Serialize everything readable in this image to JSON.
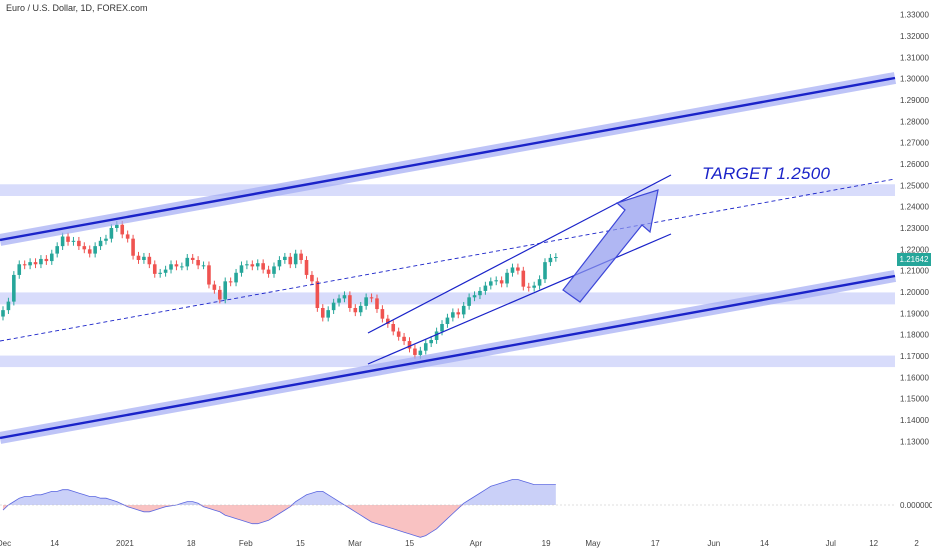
{
  "window": {
    "title": "Euro / U.S. Dollar, 1D, FOREX.com"
  },
  "annotation": {
    "target_label": "TARGET 1.2500"
  },
  "last_price_label": "1.21642",
  "colors": {
    "up": "#26a69a",
    "down": "#ef5350",
    "channel": "#1a23c9",
    "zone": "#d8dcfb",
    "macd_pos": "#a7b1f3",
    "macd_neg": "#f7a8a8"
  },
  "chart_data": {
    "type": "candlestick",
    "title": "Euro / U.S. Dollar, 1D, FOREX.com",
    "price_axis": {
      "range": [
        1.125,
        1.335
      ],
      "ticks": [
        "1.33000",
        "1.32000",
        "1.31000",
        "1.30000",
        "1.29000",
        "1.28000",
        "1.27000",
        "1.26000",
        "1.25000",
        "1.24000",
        "1.23000",
        "1.22000",
        "1.21000",
        "1.20000",
        "1.19000",
        "1.18000",
        "1.17000",
        "1.16000",
        "1.15000",
        "1.14000",
        "1.13000"
      ]
    },
    "date_axis": {
      "ticks": [
        {
          "label": "Dec",
          "day": 0
        },
        {
          "label": "14",
          "day": 13
        },
        {
          "label": "2021",
          "day": 31
        },
        {
          "label": "18",
          "day": 48
        },
        {
          "label": "Feb",
          "day": 62
        },
        {
          "label": "15",
          "day": 76
        },
        {
          "label": "Mar",
          "day": 90
        },
        {
          "label": "15",
          "day": 104
        },
        {
          "label": "Apr",
          "day": 121
        },
        {
          "label": "19",
          "day": 139
        },
        {
          "label": "May",
          "day": 151
        },
        {
          "label": "17",
          "day": 167
        },
        {
          "label": "Jun",
          "day": 182
        },
        {
          "label": "14",
          "day": 195
        },
        {
          "label": "Jul",
          "day": 212
        },
        {
          "label": "12",
          "day": 223
        },
        {
          "label": "2",
          "day": 234
        }
      ]
    },
    "macd_axis": {
      "ticks": [
        "0.000000"
      ]
    },
    "closes": [
      1.1915,
      1.1955,
      1.208,
      1.213,
      1.2125,
      1.214,
      1.213,
      1.2155,
      1.2145,
      1.218,
      1.2215,
      1.226,
      1.2235,
      1.224,
      1.2215,
      1.22,
      1.218,
      1.2215,
      1.224,
      1.225,
      1.23,
      1.2315,
      1.227,
      1.225,
      1.217,
      1.215,
      1.2165,
      1.213,
      1.2085,
      1.209,
      1.2105,
      1.213,
      1.212,
      1.212,
      1.216,
      1.215,
      1.2125,
      1.2125,
      1.2035,
      1.201,
      1.1965,
      1.205,
      1.2045,
      1.209,
      1.2125,
      1.213,
      1.212,
      1.2135,
      1.2105,
      1.2085,
      1.212,
      1.215,
      1.2165,
      1.213,
      1.218,
      1.215,
      1.208,
      1.205,
      1.1925,
      1.188,
      1.1915,
      1.195,
      1.197,
      1.1985,
      1.1925,
      1.1905,
      1.1935,
      1.1975,
      1.197,
      1.192,
      1.1875,
      1.185,
      1.1815,
      1.179,
      1.177,
      1.1735,
      1.1705,
      1.1725,
      1.176,
      1.1775,
      1.1815,
      1.185,
      1.188,
      1.1905,
      1.1895,
      1.1935,
      1.1975,
      1.1985,
      1.2005,
      1.203,
      1.205,
      1.2055,
      1.204,
      1.209,
      1.2115,
      1.21,
      1.2025,
      1.202,
      1.203,
      1.206,
      1.214,
      1.216,
      1.2164
    ],
    "series": [
      {
        "name": "",
        "type": "macd",
        "values": [
          -0.003,
          0.0,
          0.002,
          0.004,
          0.005,
          0.005,
          0.006,
          0.006,
          0.007,
          0.008,
          0.008,
          0.009,
          0.009,
          0.008,
          0.007,
          0.006,
          0.005,
          0.005,
          0.004,
          0.004,
          0.003,
          0.002,
          0.0005,
          -0.001,
          -0.002,
          -0.003,
          -0.004,
          -0.004,
          -0.003,
          -0.002,
          -0.001,
          -0.0005,
          0.0,
          0.001,
          0.002,
          0.002,
          0.001,
          -0.001,
          -0.002,
          -0.003,
          -0.004,
          -0.006,
          -0.007,
          -0.008,
          -0.009,
          -0.01,
          -0.011,
          -0.011,
          -0.01,
          -0.009,
          -0.007,
          -0.005,
          -0.003,
          -0.001,
          0.002,
          0.004,
          0.006,
          0.007,
          0.008,
          0.008,
          0.006,
          0.004,
          0.002,
          0.0,
          -0.002,
          -0.004,
          -0.006,
          -0.008,
          -0.01,
          -0.011,
          -0.012,
          -0.013,
          -0.014,
          -0.015,
          -0.016,
          -0.017,
          -0.018,
          -0.019,
          -0.018,
          -0.016,
          -0.014,
          -0.011,
          -0.008,
          -0.005,
          -0.002,
          0.001,
          0.003,
          0.005,
          0.007,
          0.009,
          0.011,
          0.012,
          0.013,
          0.014,
          0.015,
          0.015,
          0.014,
          0.013,
          0.012,
          0.012,
          0.012,
          0.012,
          0.012
        ]
      }
    ],
    "zones": [
      {
        "from": 1.245,
        "to": 1.2505
      },
      {
        "from": 1.1942,
        "to": 1.1998
      },
      {
        "from": 1.1648,
        "to": 1.1702
      }
    ],
    "xlabel": "",
    "ylabel": ""
  }
}
